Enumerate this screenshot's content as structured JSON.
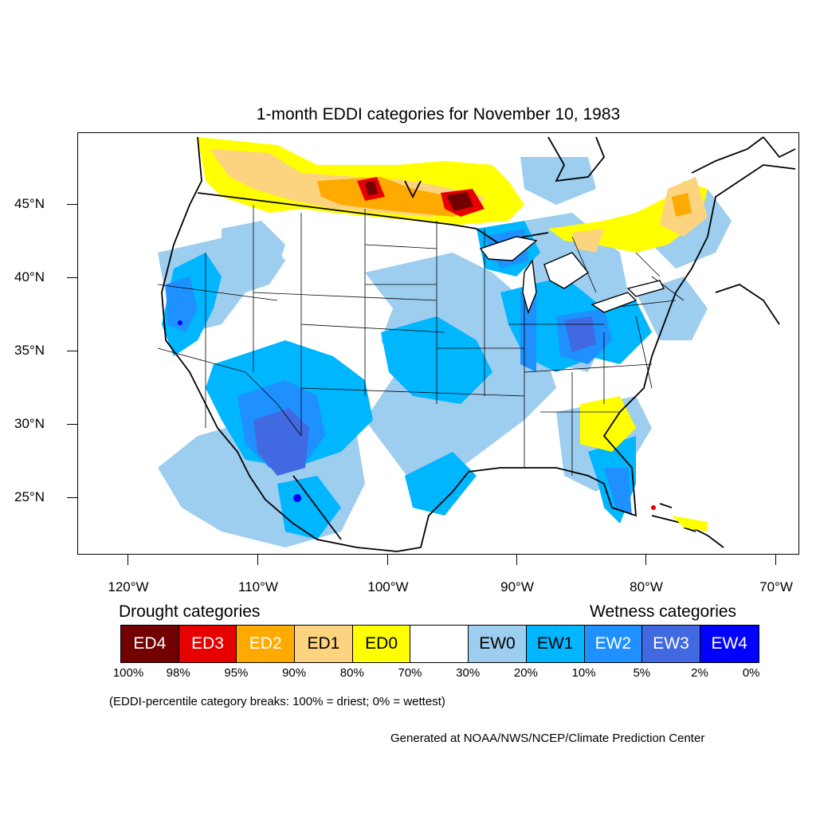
{
  "title": "1-month EDDI categories for November 10, 1983",
  "latitude_labels": [
    "45°N",
    "40°N",
    "35°N",
    "30°N",
    "25°N"
  ],
  "longitude_labels": [
    "120°W",
    "110°W",
    "100°W",
    "90°W",
    "80°W",
    "70°W"
  ],
  "legend": {
    "drought_heading": "Drought categories",
    "wetness_heading": "Wetness categories",
    "categories": [
      {
        "label": "ED4",
        "color": "#730000",
        "text_color": "#ffffff"
      },
      {
        "label": "ED3",
        "color": "#e60000",
        "text_color": "#ffffff"
      },
      {
        "label": "ED2",
        "color": "#ffaa00",
        "text_color": "#ffffff"
      },
      {
        "label": "ED1",
        "color": "#fcd37f",
        "text_color": "#000000"
      },
      {
        "label": "ED0",
        "color": "#ffff00",
        "text_color": "#000000"
      },
      {
        "label": "",
        "color": "#ffffff",
        "text_color": "#000000"
      },
      {
        "label": "EW0",
        "color": "#9dcdef",
        "text_color": "#000000"
      },
      {
        "label": "EW1",
        "color": "#00b6ff",
        "text_color": "#000000"
      },
      {
        "label": "EW2",
        "color": "#1e90ff",
        "text_color": "#ffffff"
      },
      {
        "label": "EW3",
        "color": "#4169e1",
        "text_color": "#ffffff"
      },
      {
        "label": "EW4",
        "color": "#0000ff",
        "text_color": "#ffffff"
      }
    ],
    "percent_breaks": [
      "100%",
      "98%",
      "95%",
      "90%",
      "80%",
      "70%",
      "30%",
      "20%",
      "10%",
      "5%",
      "2%",
      "0%"
    ]
  },
  "note": "(EDDI-percentile category breaks: 100% = driest; 0% = wettest)",
  "credit": "Generated at NOAA/NWS/NCEP/Climate Prediction Center"
}
